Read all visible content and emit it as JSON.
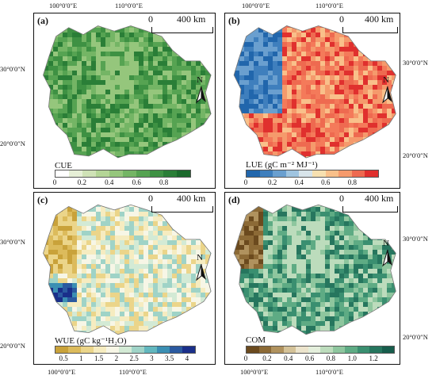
{
  "coords": {
    "lon_100": "100°0′0″E",
    "lon_110": "110°0′0″E",
    "lat_30": "30°0′0″N",
    "lat_20": "20°0′0″N"
  },
  "scale": {
    "zero": "0",
    "distance": "400 km"
  },
  "north": "N",
  "panels": [
    {
      "label": "(a)",
      "legend_title": "CUE",
      "legend_ticks": [
        "0",
        "0.2",
        "0.4",
        "0.6",
        "0.8"
      ],
      "colors": [
        "#ffffff",
        "#e6efd6",
        "#cfe2b6",
        "#b4d596",
        "#95c67c",
        "#74b565",
        "#56a352",
        "#3e9143",
        "#2a7e37",
        "#1b6a2c"
      ],
      "map_palette": [
        "#56a352",
        "#3e9143",
        "#74b565",
        "#2a7e37",
        "#95c67c"
      ]
    },
    {
      "label": "(b)",
      "legend_title": "LUE (gC m⁻² MJ⁻¹)",
      "legend_ticks": [
        "0",
        "0.2",
        "0.4",
        "0.6",
        "0.8"
      ],
      "colors": [
        "#2166ac",
        "#3f7fbd",
        "#6a9fcf",
        "#9fc4e0",
        "#d8e4ea",
        "#f7e0b0",
        "#f9c08a",
        "#f59a6c",
        "#ee6a50",
        "#e0302e"
      ],
      "map_palette": [
        "#ee6a50",
        "#f59a6c",
        "#e0302e",
        "#f47a5a",
        "#f9c08a"
      ]
    },
    {
      "label": "(c)",
      "legend_title": "WUE (gC kg⁻¹H₂O)",
      "legend_ticks": [
        "0.5",
        "1",
        "1.5",
        "2",
        "2.5",
        "3",
        "3.5",
        "4"
      ],
      "colors": [
        "#c9a23a",
        "#dcbb5c",
        "#ebd58a",
        "#f6ecc0",
        "#f7f6e6",
        "#d3ead5",
        "#9fd3c7",
        "#62b7be",
        "#3b8fb3",
        "#2b5aa0",
        "#1a2f8a"
      ],
      "map_palette": [
        "#f7f6e6",
        "#f6ecc0",
        "#d3ead5",
        "#ebd58a",
        "#9fd3c7"
      ]
    },
    {
      "label": "(d)",
      "legend_title": "COM",
      "legend_ticks": [
        "0",
        "0.2",
        "0.4",
        "0.6",
        "0.8",
        "1.0",
        "1.2"
      ],
      "colors": [
        "#6b4a1e",
        "#8c6a36",
        "#b0925e",
        "#d4c298",
        "#ece4cc",
        "#e4efdc",
        "#bcdcbc",
        "#8ec69e",
        "#5eab84",
        "#3a8f70",
        "#26765e",
        "#175d4c"
      ],
      "map_palette": [
        "#5eab84",
        "#3a8f70",
        "#8ec69e",
        "#26765e",
        "#bcdcbc"
      ]
    }
  ]
}
